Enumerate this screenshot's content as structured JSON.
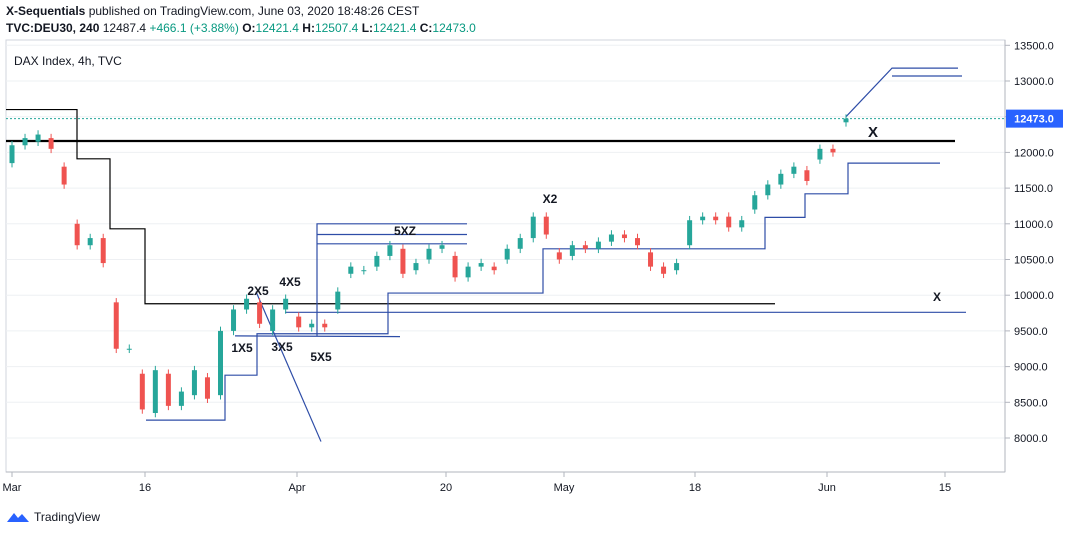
{
  "header": {
    "publisher": "X-Sequentials",
    "published_text": "published on TradingView.com, June 03, 2020 18:48:26 CEST",
    "symbol": "TVC:DEU30, 240",
    "last": "12487.4",
    "change": "+466.1 (+3.88%)",
    "o_label": "O:",
    "o_val": "12421.4",
    "h_label": "H:",
    "h_val": "12507.4",
    "l_label": "L:",
    "l_val": "12421.4",
    "c_label": "C:",
    "c_val": "12473.0"
  },
  "footer": {
    "brand": "TradingView"
  },
  "colors": {
    "up": "#26a69a",
    "down": "#ef5350",
    "line_blue": "#2e4da7",
    "black": "#000000",
    "grid": "#eef0f3",
    "price_tag": "#2962ff"
  },
  "chart_data": {
    "type": "candlestick",
    "title": "DAX Index, 4h, TVC",
    "ylim": [
      7500,
      13650
    ],
    "y_ticks": [
      "13500.0",
      "13000.0",
      "12500.0",
      "12000.0",
      "11500.0",
      "11000.0",
      "10500.0",
      "10000.0",
      "9500.0",
      "9000.0",
      "8500.0",
      "8000.0"
    ],
    "x_ticks": [
      "Mar",
      "16",
      "Apr",
      "20",
      "May",
      "18",
      "Jun",
      "15"
    ],
    "last_price_label": "12473.0",
    "last_price": 12473.0,
    "annotations": [
      "1X5",
      "2X5",
      "3X5",
      "4X5",
      "5X5",
      "5XZ",
      "X2",
      "X",
      "X"
    ],
    "candles": [
      {
        "d": "Mar 2",
        "o": 11850,
        "c": 12100
      },
      {
        "d": "Mar 3",
        "o": 12100,
        "c": 12200
      },
      {
        "d": "Mar 4",
        "o": 12150,
        "c": 12250
      },
      {
        "d": "Mar 5",
        "o": 12200,
        "c": 12050
      },
      {
        "d": "Mar 6",
        "o": 11800,
        "c": 11550
      },
      {
        "d": "Mar 9",
        "o": 11000,
        "c": 10700
      },
      {
        "d": "Mar 10",
        "o": 10700,
        "c": 10800
      },
      {
        "d": "Mar 11",
        "o": 10800,
        "c": 10450
      },
      {
        "d": "Mar 12",
        "o": 9900,
        "c": 9250
      },
      {
        "d": "Mar 13",
        "o": 9250,
        "c": 9250
      },
      {
        "d": "Mar 16",
        "o": 8900,
        "c": 8400
      },
      {
        "d": "Mar 17",
        "o": 8350,
        "c": 8950
      },
      {
        "d": "Mar 18",
        "o": 8900,
        "c": 8450
      },
      {
        "d": "Mar 19",
        "o": 8450,
        "c": 8650
      },
      {
        "d": "Mar 20",
        "o": 8600,
        "c": 8950
      },
      {
        "d": "Mar 23",
        "o": 8850,
        "c": 8550
      },
      {
        "d": "Mar 24",
        "o": 8600,
        "c": 9500
      },
      {
        "d": "Mar 25",
        "o": 9500,
        "c": 9800
      },
      {
        "d": "Mar 26",
        "o": 9800,
        "c": 9950
      },
      {
        "d": "Mar 27",
        "o": 9900,
        "c": 9600
      },
      {
        "d": "Mar 30",
        "o": 9500,
        "c": 9800
      },
      {
        "d": "Mar 31",
        "o": 9800,
        "c": 9950
      },
      {
        "d": "Apr 1",
        "o": 9700,
        "c": 9550
      },
      {
        "d": "Apr 2",
        "o": 9550,
        "c": 9600
      },
      {
        "d": "Apr 3",
        "o": 9600,
        "c": 9550
      },
      {
        "d": "Apr 6",
        "o": 9800,
        "c": 10050
      },
      {
        "d": "Apr 7",
        "o": 10300,
        "c": 10400
      },
      {
        "d": "Apr 8",
        "o": 10350,
        "c": 10350
      },
      {
        "d": "Apr 9",
        "o": 10400,
        "c": 10550
      },
      {
        "d": "Apr 14",
        "o": 10550,
        "c": 10700
      },
      {
        "d": "Apr 15",
        "o": 10650,
        "c": 10300
      },
      {
        "d": "Apr 16",
        "o": 10350,
        "c": 10450
      },
      {
        "d": "Apr 17",
        "o": 10500,
        "c": 10650
      },
      {
        "d": "Apr 20",
        "o": 10650,
        "c": 10700
      },
      {
        "d": "Apr 21",
        "o": 10550,
        "c": 10250
      },
      {
        "d": "Apr 22",
        "o": 10250,
        "c": 10400
      },
      {
        "d": "Apr 23",
        "o": 10400,
        "c": 10450
      },
      {
        "d": "Apr 24",
        "o": 10400,
        "c": 10350
      },
      {
        "d": "Apr 27",
        "o": 10500,
        "c": 10650
      },
      {
        "d": "Apr 28",
        "o": 10650,
        "c": 10800
      },
      {
        "d": "Apr 29",
        "o": 10800,
        "c": 11100
      },
      {
        "d": "Apr 30",
        "o": 11100,
        "c": 10850
      },
      {
        "d": "May 4",
        "o": 10600,
        "c": 10500
      },
      {
        "d": "May 5",
        "o": 10550,
        "c": 10700
      },
      {
        "d": "May 6",
        "o": 10700,
        "c": 10650
      },
      {
        "d": "May 7",
        "o": 10650,
        "c": 10750
      },
      {
        "d": "May 8",
        "o": 10750,
        "c": 10850
      },
      {
        "d": "May 11",
        "o": 10850,
        "c": 10800
      },
      {
        "d": "May 12",
        "o": 10800,
        "c": 10700
      },
      {
        "d": "May 13",
        "o": 10600,
        "c": 10400
      },
      {
        "d": "May 14",
        "o": 10400,
        "c": 10300
      },
      {
        "d": "May 15",
        "o": 10350,
        "c": 10450
      },
      {
        "d": "May 18",
        "o": 10700,
        "c": 11050
      },
      {
        "d": "May 19",
        "o": 11050,
        "c": 11100
      },
      {
        "d": "May 20",
        "o": 11100,
        "c": 11050
      },
      {
        "d": "May 21",
        "o": 11100,
        "c": 10950
      },
      {
        "d": "May 22",
        "o": 10950,
        "c": 11050
      },
      {
        "d": "May 25",
        "o": 11200,
        "c": 11400
      },
      {
        "d": "May 26",
        "o": 11400,
        "c": 11550
      },
      {
        "d": "May 27",
        "o": 11550,
        "c": 11700
      },
      {
        "d": "May 28",
        "o": 11700,
        "c": 11800
      },
      {
        "d": "May 29",
        "o": 11750,
        "c": 11600
      },
      {
        "d": "Jun 1",
        "o": 11900,
        "c": 12050
      },
      {
        "d": "Jun 2",
        "o": 12050,
        "c": 12000
      },
      {
        "d": "Jun 3",
        "o": 12421.4,
        "c": 12473.0
      }
    ]
  }
}
